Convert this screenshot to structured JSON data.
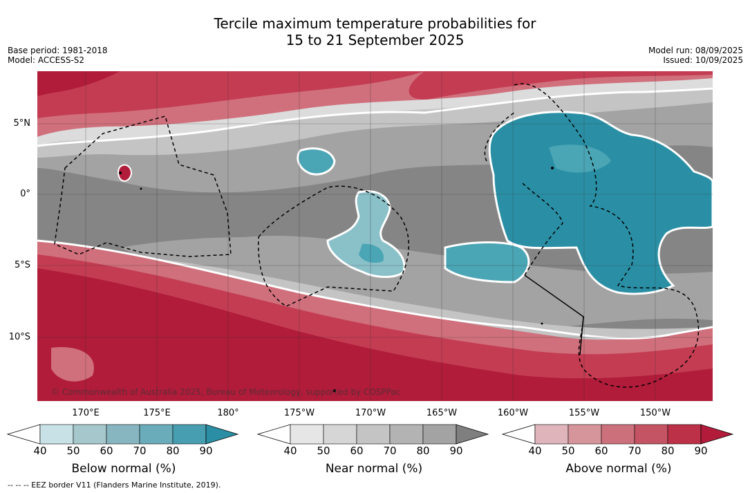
{
  "title": {
    "line1": "Tercile maximum temperature probabilities for",
    "line2": "15 to 21 September 2025"
  },
  "meta_left": {
    "base_period": "Base period: 1981-2018",
    "model": "Model: ACCESS-S2"
  },
  "meta_right": {
    "model_run": "Model run: 08/09/2025",
    "issued": "Issued: 10/09/2025"
  },
  "map": {
    "credit": "© Commonwealth of Australia 2025, Bureau of Meteorology, supported by COSPPac",
    "lat_labels": [
      "5°N",
      "0°",
      "5°S",
      "10°S"
    ],
    "lon_labels": [
      "170°E",
      "175°E",
      "180°",
      "175°W",
      "170°W",
      "165°W",
      "160°W",
      "155°W",
      "150°W"
    ],
    "colors": {
      "grey_dark": "#858585",
      "grey_mid": "#a3a3a3",
      "grey_light": "#c4c4c4",
      "grey_pale": "#dcdcdc",
      "red_dark": "#b01c3a",
      "red_mid": "#c43c52",
      "red_light": "#d0707c",
      "red_pale": "#dca0a8",
      "teal_dark": "#2a8fa5",
      "teal_mid": "#4aa5b5",
      "teal_light": "#8ac0c8",
      "teal_pale": "#b5d3d8"
    }
  },
  "legend": {
    "below": {
      "label": "Below normal (%)",
      "ticks": [
        "40",
        "50",
        "60",
        "70",
        "80",
        "90"
      ],
      "colors": [
        "#c8e1e7",
        "#a6c7cc",
        "#87b6c0",
        "#6aacb9",
        "#479eb0",
        "#2a8fa5"
      ]
    },
    "near": {
      "label": "Near normal (%)",
      "ticks": [
        "40",
        "50",
        "60",
        "70",
        "80",
        "90"
      ],
      "colors": [
        "#e6e6e6",
        "#d6d6d6",
        "#c4c4c4",
        "#b3b3b3",
        "#a3a3a3",
        "#7f7f7f"
      ]
    },
    "above": {
      "label": "Above normal (%)",
      "ticks": [
        "40",
        "50",
        "60",
        "70",
        "80",
        "90"
      ],
      "colors": [
        "#dfb5bb",
        "#d6949b",
        "#cc717c",
        "#c45363",
        "#bd3148",
        "#b21c3a"
      ]
    }
  },
  "footnote": "--  --  -- EEZ border V11 (Flanders Marine Institute, 2019)."
}
